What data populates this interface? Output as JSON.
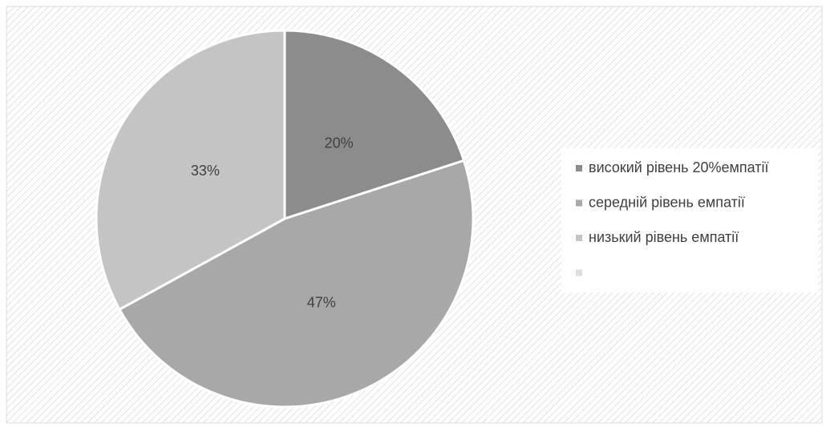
{
  "chart_data": {
    "type": "pie",
    "categories": [
      "високий рівень 20%емпатії",
      "середній рівень емпатії",
      "низький рівень емпатії",
      null
    ],
    "values": [
      20,
      47,
      33,
      0
    ],
    "value_labels": [
      "20%",
      "47%",
      "33%",
      null
    ],
    "colors": [
      "#8c8c8c",
      "#a8a8a8",
      "#c4c4c4",
      "#dedede"
    ],
    "legend": "right"
  }
}
